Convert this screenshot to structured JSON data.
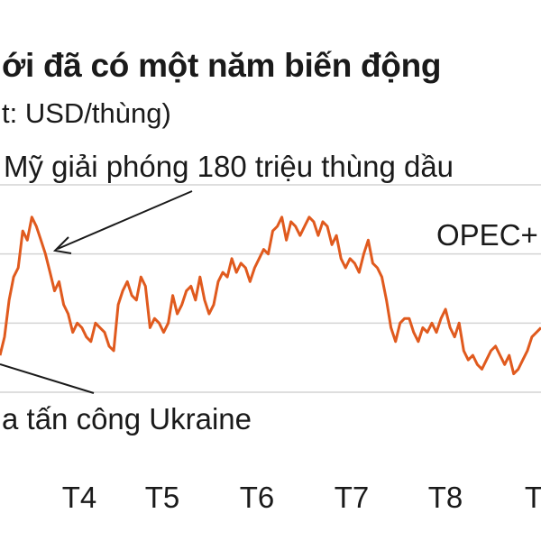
{
  "chart_data": {
    "type": "line",
    "title": "ới đã có một năm biến động",
    "subtitle": "t: USD/thùng)",
    "color": "#e05a1e",
    "grid": true,
    "xticks": [
      "T4",
      "T5",
      "T6",
      "T7",
      "T8",
      "T"
    ],
    "annotations": [
      {
        "text": "Mỹ giải phóng 180 triệu thùng dầu"
      },
      {
        "text": "OPEC+"
      },
      {
        "text": "a tấn công Ukraine"
      }
    ],
    "series": [
      {
        "values": [
          93,
          97,
          105,
          110,
          112,
          120,
          118,
          123,
          121,
          118,
          115,
          111,
          107,
          109,
          104,
          102,
          98,
          100,
          99,
          97,
          96,
          100,
          99,
          98,
          95,
          94,
          104,
          107,
          109,
          106,
          105,
          110,
          108,
          99,
          101,
          100,
          98,
          100,
          106,
          102,
          104,
          107,
          108,
          105,
          110,
          105,
          102,
          104,
          109,
          111,
          110,
          114,
          111,
          113,
          112,
          109,
          112,
          114,
          116,
          115,
          120,
          121,
          123,
          118,
          122,
          121,
          119,
          121,
          123,
          122,
          119,
          122,
          121,
          117,
          119,
          114,
          112,
          114,
          113,
          111,
          115,
          118,
          113,
          112,
          110,
          105,
          99,
          96,
          100,
          101,
          101,
          98,
          96,
          99,
          98,
          100,
          98,
          101,
          103,
          99,
          97,
          100,
          94,
          92,
          93,
          91,
          90,
          92,
          94,
          95,
          93,
          91,
          93,
          89,
          90,
          92,
          94,
          97,
          98,
          99
        ]
      }
    ]
  }
}
